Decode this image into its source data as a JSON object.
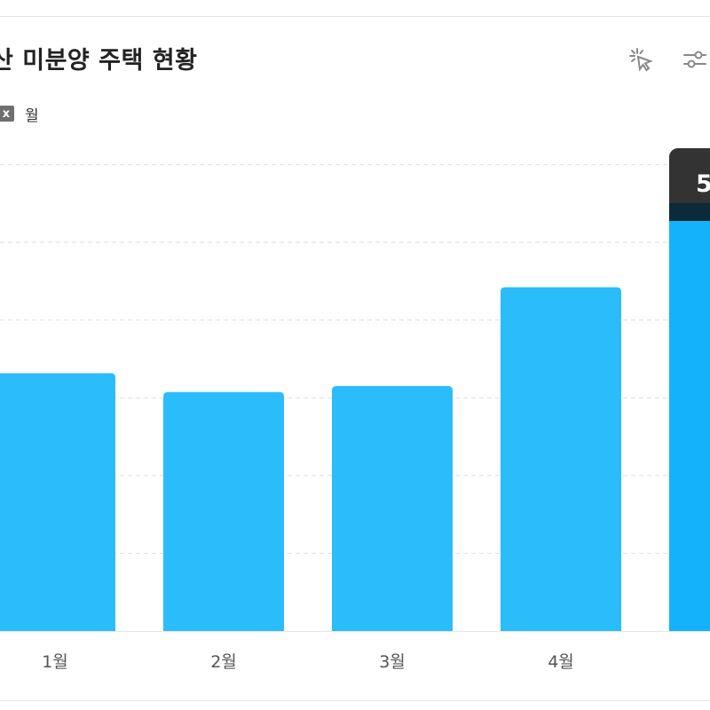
{
  "header": {
    "title": "산 미분양 주택 현황"
  },
  "toolbar": {
    "icons": [
      "click-select-icon",
      "filter-sliders-icon"
    ]
  },
  "legend": {
    "marker": "x",
    "label": "월"
  },
  "tooltip": {
    "value_text": "5"
  },
  "colors": {
    "bar": "#2bbdfb",
    "bar_highlight": "#12b3fb",
    "tooltip_bg": "#333333",
    "grid": "#dddddd",
    "tick": "#555555"
  },
  "chart_data": {
    "type": "bar",
    "categories": [
      "1월",
      "2월",
      "3월",
      "4월",
      ""
    ],
    "values": [
      30,
      27.8,
      28.5,
      40,
      55
    ],
    "highlighted_index": 4,
    "ylim": [
      0,
      60
    ],
    "grid": true,
    "grid_style": "dashed",
    "legend_position": "top-left"
  }
}
